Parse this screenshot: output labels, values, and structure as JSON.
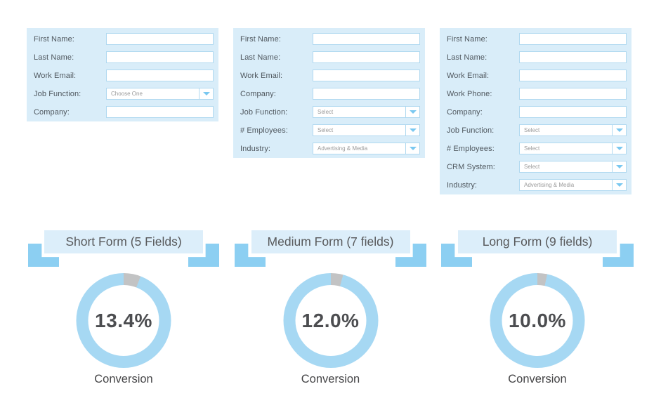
{
  "palette": {
    "form_bg": "#d9edf9",
    "input_bg": "#ffffff",
    "input_border": "#b0d9f0",
    "field_label_text": "#4f575e",
    "dropdown_text": "#9a9a9a",
    "chevron_blue": "#7ac8f0",
    "ribbon_blue": "#8ccff2",
    "banner_bg": "#dceefa",
    "banner_text": "#58595b",
    "donut_blue": "#a6d8f3",
    "donut_gray": "#c2c3c4",
    "percent_text": "#4c4d50",
    "caption_text": "#454547"
  },
  "columns": [
    {
      "form": {
        "fields": [
          {
            "label": "First Name:",
            "type": "text",
            "value": ""
          },
          {
            "label": "Last Name:",
            "type": "text",
            "value": ""
          },
          {
            "label": "Work Email:",
            "type": "text",
            "value": ""
          },
          {
            "label": "Job Function:",
            "type": "select",
            "value": "Choose One"
          },
          {
            "label": "Company:",
            "type": "text",
            "value": ""
          }
        ]
      },
      "banner": {
        "label": "Short Form (5 Fields)"
      },
      "donut": {
        "value_label": "13.4%",
        "value": 13.4,
        "segments": [
          {
            "name": "gray-notch",
            "sweep_deg": 21,
            "color": "#c2c3c4"
          },
          {
            "name": "blue-ring",
            "sweep_deg": 339,
            "color": "#a6d8f3"
          }
        ]
      },
      "caption": "Conversion"
    },
    {
      "form": {
        "fields": [
          {
            "label": "First Name:",
            "type": "text",
            "value": ""
          },
          {
            "label": "Last Name:",
            "type": "text",
            "value": ""
          },
          {
            "label": "Work Email:",
            "type": "text",
            "value": ""
          },
          {
            "label": "Company:",
            "type": "text",
            "value": ""
          },
          {
            "label": "Job Function:",
            "type": "select",
            "value": "Select"
          },
          {
            "label": "# Employees:",
            "type": "select",
            "value": "Select"
          },
          {
            "label": "Industry:",
            "type": "select",
            "value": "Advertising & Media"
          }
        ]
      },
      "banner": {
        "label": "Medium Form (7 fields)"
      },
      "donut": {
        "value_label": "12.0%",
        "value": 12.0,
        "segments": [
          {
            "name": "gray-notch",
            "sweep_deg": 15,
            "color": "#c2c3c4"
          },
          {
            "name": "blue-ring",
            "sweep_deg": 345,
            "color": "#a6d8f3"
          }
        ]
      },
      "caption": "Conversion"
    },
    {
      "form": {
        "fields": [
          {
            "label": "First Name:",
            "type": "text",
            "value": ""
          },
          {
            "label": "Last Name:",
            "type": "text",
            "value": ""
          },
          {
            "label": "Work Email:",
            "type": "text",
            "value": ""
          },
          {
            "label": "Work Phone:",
            "type": "text",
            "value": ""
          },
          {
            "label": "Company:",
            "type": "text",
            "value": ""
          },
          {
            "label": "Job Function:",
            "type": "select",
            "value": "Select"
          },
          {
            "label": "# Employees:",
            "type": "select",
            "value": "Select"
          },
          {
            "label": "CRM System:",
            "type": "select",
            "value": "Select"
          },
          {
            "label": "Industry:",
            "type": "select",
            "value": "Advertising & Media"
          }
        ]
      },
      "banner": {
        "label": "Long Form (9 fields)"
      },
      "donut": {
        "value_label": "10.0%",
        "value": 10.0,
        "segments": [
          {
            "name": "gray-notch",
            "sweep_deg": 12,
            "color": "#c2c3c4"
          },
          {
            "name": "blue-ring",
            "sweep_deg": 348,
            "color": "#a6d8f3"
          }
        ]
      },
      "caption": "Conversion"
    }
  ],
  "chart_data": [
    {
      "type": "pie",
      "subtype": "donut",
      "title": "Short Form (5 Fields)",
      "center_label": "13.4%",
      "caption": "Conversion",
      "conversion_pct": 13.4,
      "segments": [
        {
          "label": "gray-notch",
          "sweep_deg": 21,
          "color": "#c2c3c4"
        },
        {
          "label": "blue-ring",
          "sweep_deg": 339,
          "color": "#a6d8f3"
        }
      ],
      "form_fields": [
        "First Name:",
        "Last Name:",
        "Work Email:",
        "Job Function:",
        "Company:"
      ]
    },
    {
      "type": "pie",
      "subtype": "donut",
      "title": "Medium Form (7 fields)",
      "center_label": "12.0%",
      "caption": "Conversion",
      "conversion_pct": 12.0,
      "segments": [
        {
          "label": "gray-notch",
          "sweep_deg": 15,
          "color": "#c2c3c4"
        },
        {
          "label": "blue-ring",
          "sweep_deg": 345,
          "color": "#a6d8f3"
        }
      ],
      "form_fields": [
        "First Name:",
        "Last Name:",
        "Work Email:",
        "Company:",
        "Job Function:",
        "# Employees:",
        "Industry:"
      ]
    },
    {
      "type": "pie",
      "subtype": "donut",
      "title": "Long Form (9 fields)",
      "center_label": "10.0%",
      "caption": "Conversion",
      "conversion_pct": 10.0,
      "segments": [
        {
          "label": "gray-notch",
          "sweep_deg": 12,
          "color": "#c2c3c4"
        },
        {
          "label": "blue-ring",
          "sweep_deg": 348,
          "color": "#a6d8f3"
        }
      ],
      "form_fields": [
        "First Name:",
        "Last Name:",
        "Work Email:",
        "Work Phone:",
        "Company:",
        "Job Function:",
        "# Employees:",
        "CRM System:",
        "Industry:"
      ]
    }
  ]
}
